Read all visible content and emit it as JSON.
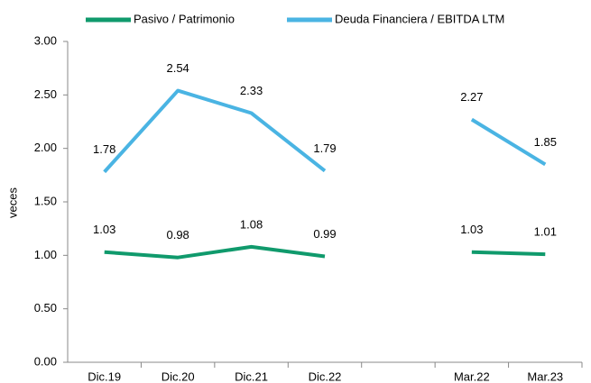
{
  "chart_data": {
    "type": "line",
    "categories": [
      "Dic.19",
      "Dic.20",
      "Dic.21",
      "Dic.22",
      null,
      "Mar.22",
      "Mar.23"
    ],
    "series": [
      {
        "name": "Pasivo / Patrimonio",
        "color": "#109a6c",
        "values": [
          1.03,
          0.98,
          1.08,
          0.99,
          null,
          1.03,
          1.01
        ]
      },
      {
        "name": "Deuda Financiera / EBITDA LTM",
        "color": "#4ab4e3",
        "values": [
          1.78,
          2.54,
          2.33,
          1.79,
          null,
          2.27,
          1.85
        ]
      }
    ],
    "ylabel": "veces",
    "ylim": [
      0,
      3
    ],
    "yticks": [
      {
        "value": 0,
        "label": "0.00"
      },
      {
        "value": 0.5,
        "label": "0.50"
      },
      {
        "value": 1,
        "label": "1.00"
      },
      {
        "value": 1.5,
        "label": "1.50"
      },
      {
        "value": 2,
        "label": "2.00"
      },
      {
        "value": 2.5,
        "label": "2.50"
      },
      {
        "value": 3,
        "label": "3.00"
      }
    ],
    "legend": "top",
    "grid": false
  }
}
